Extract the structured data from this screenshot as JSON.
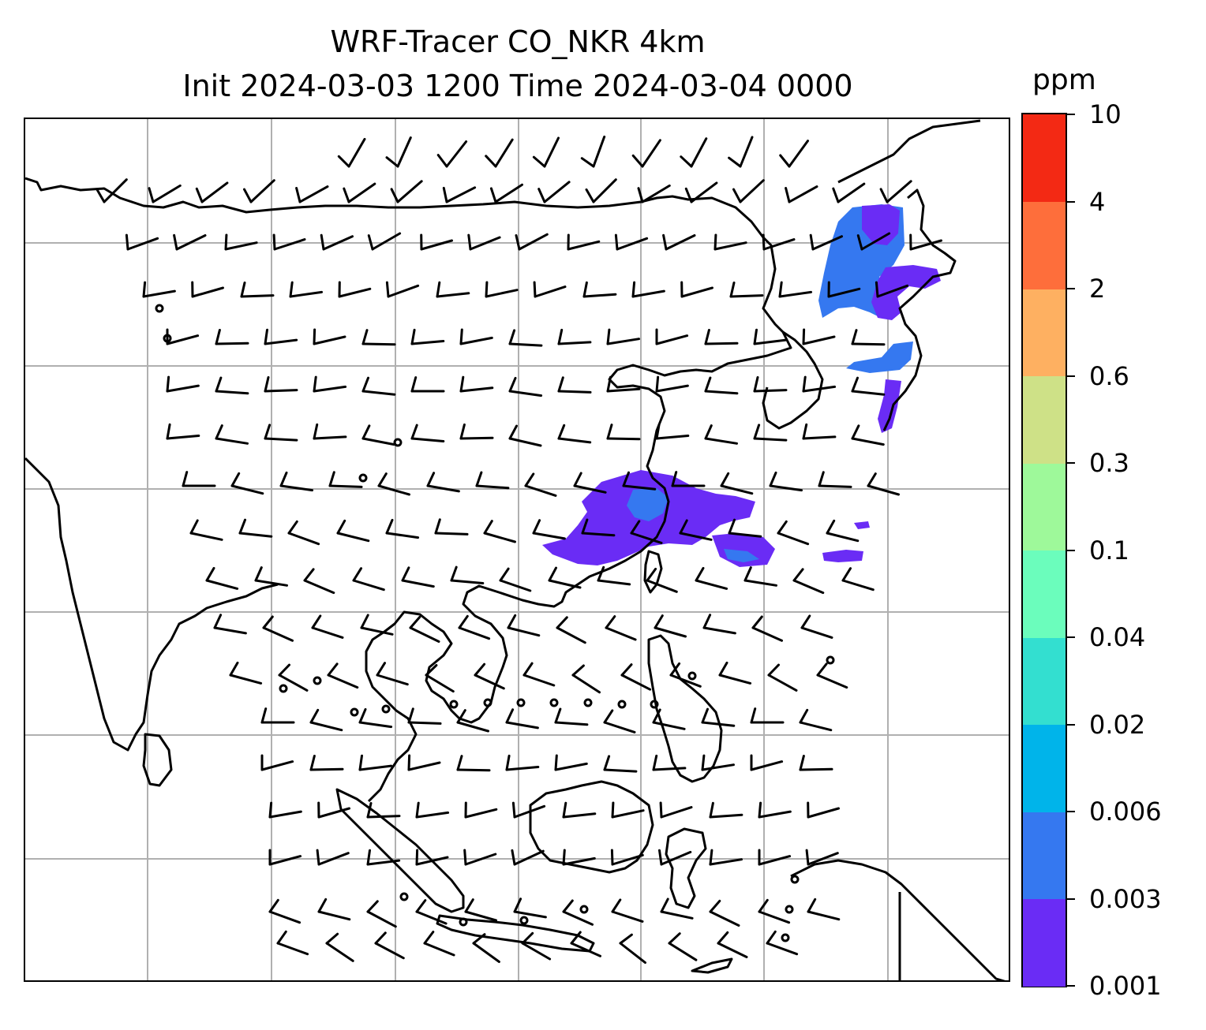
{
  "title": {
    "line1": "WRF-Tracer CO_NKR 4km",
    "line2": "Init 2024-03-03 1200 Time 2024-03-04 0000"
  },
  "map": {
    "gridlines": true,
    "coastline_color": "#000000",
    "wind_barbs": true
  },
  "colorbar": {
    "unit": "ppm",
    "levels": [
      "0.001",
      "0.003",
      "0.006",
      "0.02",
      "0.04",
      "0.1",
      "0.3",
      "0.6",
      "2",
      "4",
      "10"
    ],
    "colors": [
      "#6a2cf5",
      "#3578f0",
      "#00b4ea",
      "#33dfd0",
      "#6bfdbc",
      "#9ef99a",
      "#cee187",
      "#feb061",
      "#fe6e3b",
      "#f32914"
    ]
  },
  "tracer_plumes": {
    "colors": {
      "low": "#6a2cf5",
      "mid": "#3578f0"
    }
  }
}
